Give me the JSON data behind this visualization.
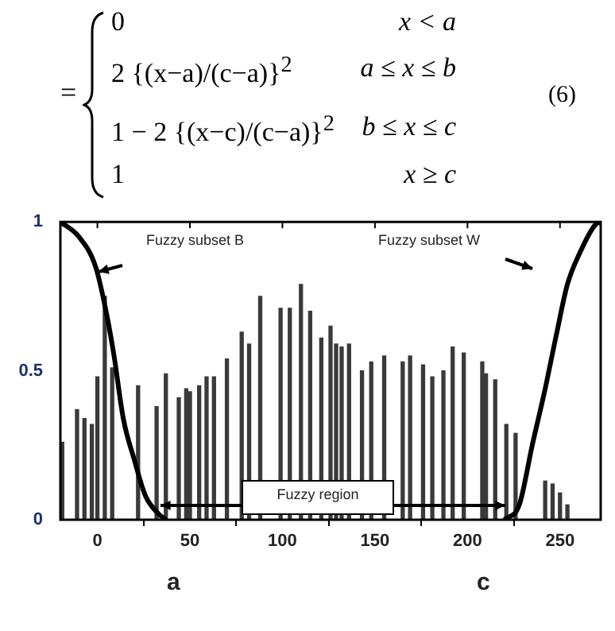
{
  "chart_data": {
    "type": "bar",
    "annotations": [
      "=",
      "0",
      "x < a",
      "2 {(x−a)/(c−a)}$^{2}$",
      "a ≤ x ≤ b",
      "1 − 2 {(x−c)/(c−a)}$^{2}$",
      "b ≤ x ≤ c",
      "1",
      "x ≥ c",
      "(6)",
      "Fuzzy subset B",
      "Fuzzy subset W",
      "Fuzzy region",
      "a",
      "c"
    ],
    "xlim": [
      -20,
      272
    ],
    "ylim": [
      0,
      1
    ],
    "xticks": [
      0,
      50,
      100,
      150,
      200,
      250
    ],
    "yticks": [
      0,
      0.5,
      1
    ],
    "marker": "none",
    "series": [
      {
        "color": "#3a3a3a",
        "x": [
          -19,
          -11,
          -7,
          -3,
          0,
          4,
          8,
          22,
          32,
          37,
          44,
          48,
          50,
          55,
          59,
          63,
          70,
          78,
          82,
          88,
          99,
          104,
          110,
          115,
          121,
          126,
          129,
          132,
          136,
          143,
          148,
          155,
          165,
          169,
          176,
          181,
          187,
          192,
          198,
          208,
          210,
          215,
          221,
          226,
          242,
          246,
          250,
          254
        ],
        "values": [
          0.26,
          0.37,
          0.34,
          0.32,
          0.48,
          0.75,
          0.51,
          0.45,
          0.38,
          0.49,
          0.41,
          0.44,
          0.43,
          0.45,
          0.48,
          0.48,
          0.54,
          0.63,
          0.59,
          0.75,
          0.71,
          0.71,
          0.79,
          0.7,
          0.61,
          0.65,
          0.59,
          0.58,
          0.59,
          0.5,
          0.53,
          0.55,
          0.53,
          0.55,
          0.52,
          0.48,
          0.5,
          0.58,
          0.56,
          0.53,
          0.49,
          0.47,
          0.32,
          0.29,
          0.13,
          0.12,
          0.09,
          0.05
        ]
      },
      {
        "type": "line",
        "color": "#000000",
        "x": [
          -20,
          -10,
          -1,
          5,
          9,
          14,
          20,
          26,
          33,
          37
        ],
        "values": [
          1,
          0.95,
          0.85,
          0.69,
          0.55,
          0.34,
          0.2,
          0.08,
          0.02,
          0
        ]
      },
      {
        "type": "line",
        "color": "#000000",
        "x": [
          220,
          228,
          235,
          242,
          248,
          254,
          261,
          269,
          272
        ],
        "values": [
          0,
          0.05,
          0.25,
          0.44,
          0.62,
          0.79,
          0.9,
          0.99,
          1
        ]
      }
    ]
  }
}
